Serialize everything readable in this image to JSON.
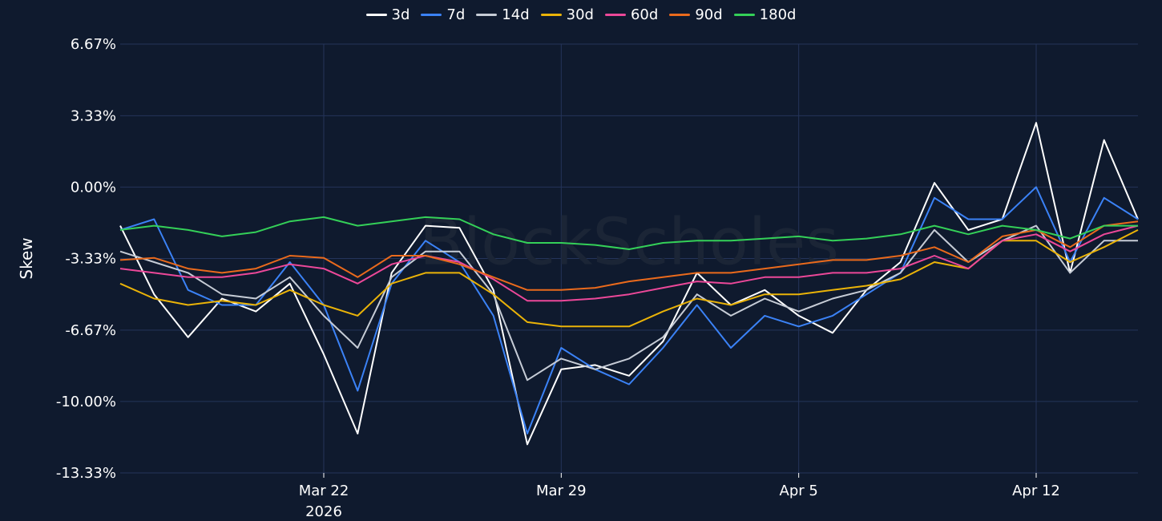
{
  "chart_data": {
    "type": "line",
    "title": "",
    "ylabel": "Skew",
    "xlabel": "",
    "watermark": "BlockScholes",
    "y_ticks": [
      "6.67%",
      "3.33%",
      "0.00%",
      "-3.33%",
      "-6.67%",
      "-10.00%",
      "-13.33%"
    ],
    "ylim": [
      -13.33,
      6.67
    ],
    "x_ticks": [
      {
        "date": "2026-03-22",
        "label": "Mar 22",
        "sublabel": "2026"
      },
      {
        "date": "2026-03-29",
        "label": "Mar 29",
        "sublabel": ""
      },
      {
        "date": "2026-04-05",
        "label": "Apr 5",
        "sublabel": ""
      },
      {
        "date": "2026-04-12",
        "label": "Apr 12",
        "sublabel": ""
      }
    ],
    "xlim": [
      "2026-03-16",
      "2026-04-15"
    ],
    "grid": true,
    "legend_position": "top-center",
    "background": "#0f1a2e",
    "grid_color": "#24345a",
    "series": [
      {
        "name": "3d",
        "color": "#ffffff",
        "x": [
          "2026-03-16",
          "2026-03-17",
          "2026-03-18",
          "2026-03-19",
          "2026-03-20",
          "2026-03-21",
          "2026-03-22",
          "2026-03-23",
          "2026-03-24",
          "2026-03-25",
          "2026-03-26",
          "2026-03-27",
          "2026-03-28",
          "2026-03-29",
          "2026-03-30",
          "2026-03-31",
          "2026-04-01",
          "2026-04-02",
          "2026-04-03",
          "2026-04-04",
          "2026-04-05",
          "2026-04-06",
          "2026-04-07",
          "2026-04-08",
          "2026-04-09",
          "2026-04-10",
          "2026-04-11",
          "2026-04-12",
          "2026-04-13",
          "2026-04-14",
          "2026-04-15"
        ],
        "y": [
          -1.8,
          -5.0,
          -7.0,
          -5.2,
          -5.8,
          -4.5,
          -7.8,
          -11.5,
          -4.0,
          -1.8,
          -1.9,
          -4.8,
          -12.0,
          -8.5,
          -8.3,
          -8.8,
          -7.2,
          -4.0,
          -5.5,
          -4.8,
          -6.0,
          -6.8,
          -4.8,
          -3.5,
          0.2,
          -2.0,
          -1.5,
          3.0,
          -4.0,
          2.2,
          -1.5
        ]
      },
      {
        "name": "7d",
        "color": "#3b82f6",
        "x": [
          "2026-03-16",
          "2026-03-17",
          "2026-03-18",
          "2026-03-19",
          "2026-03-20",
          "2026-03-21",
          "2026-03-22",
          "2026-03-23",
          "2026-03-24",
          "2026-03-25",
          "2026-03-26",
          "2026-03-27",
          "2026-03-28",
          "2026-03-29",
          "2026-03-30",
          "2026-03-31",
          "2026-04-01",
          "2026-04-02",
          "2026-04-03",
          "2026-04-04",
          "2026-04-05",
          "2026-04-06",
          "2026-04-07",
          "2026-04-08",
          "2026-04-09",
          "2026-04-10",
          "2026-04-11",
          "2026-04-12",
          "2026-04-13",
          "2026-04-14",
          "2026-04-15"
        ],
        "y": [
          -2.0,
          -1.5,
          -4.8,
          -5.5,
          -5.5,
          -3.5,
          -5.5,
          -9.5,
          -4.5,
          -2.5,
          -3.5,
          -6.0,
          -11.5,
          -7.5,
          -8.5,
          -9.2,
          -7.5,
          -5.5,
          -7.5,
          -6.0,
          -6.5,
          -6.0,
          -5.0,
          -4.0,
          -0.5,
          -1.5,
          -1.5,
          0.0,
          -3.5,
          -0.5,
          -1.5
        ]
      },
      {
        "name": "14d",
        "color": "#c6ccd6",
        "x": [
          "2026-03-16",
          "2026-03-17",
          "2026-03-18",
          "2026-03-19",
          "2026-03-20",
          "2026-03-21",
          "2026-03-22",
          "2026-03-23",
          "2026-03-24",
          "2026-03-25",
          "2026-03-26",
          "2026-03-27",
          "2026-03-28",
          "2026-03-29",
          "2026-03-30",
          "2026-03-31",
          "2026-04-01",
          "2026-04-02",
          "2026-04-03",
          "2026-04-04",
          "2026-04-05",
          "2026-04-06",
          "2026-04-07",
          "2026-04-08",
          "2026-04-09",
          "2026-04-10",
          "2026-04-11",
          "2026-04-12",
          "2026-04-13",
          "2026-04-14",
          "2026-04-15"
        ],
        "y": [
          -3.0,
          -3.5,
          -4.0,
          -5.0,
          -5.2,
          -4.2,
          -6.0,
          -7.5,
          -4.2,
          -3.0,
          -3.0,
          -5.0,
          -9.0,
          -8.0,
          -8.5,
          -8.0,
          -7.0,
          -5.0,
          -6.0,
          -5.2,
          -5.8,
          -5.2,
          -4.8,
          -4.0,
          -2.0,
          -3.5,
          -2.5,
          -1.8,
          -4.0,
          -2.5,
          -2.5
        ]
      },
      {
        "name": "30d",
        "color": "#eab308",
        "x": [
          "2026-03-16",
          "2026-03-17",
          "2026-03-18",
          "2026-03-19",
          "2026-03-20",
          "2026-03-21",
          "2026-03-22",
          "2026-03-23",
          "2026-03-24",
          "2026-03-25",
          "2026-03-26",
          "2026-03-27",
          "2026-03-28",
          "2026-03-29",
          "2026-03-30",
          "2026-03-31",
          "2026-04-01",
          "2026-04-02",
          "2026-04-03",
          "2026-04-04",
          "2026-04-05",
          "2026-04-06",
          "2026-04-07",
          "2026-04-08",
          "2026-04-09",
          "2026-04-10",
          "2026-04-11",
          "2026-04-12",
          "2026-04-13",
          "2026-04-14",
          "2026-04-15"
        ],
        "y": [
          -4.5,
          -5.2,
          -5.5,
          -5.3,
          -5.5,
          -4.8,
          -5.5,
          -6.0,
          -4.5,
          -4.0,
          -4.0,
          -5.0,
          -6.3,
          -6.5,
          -6.5,
          -6.5,
          -5.8,
          -5.2,
          -5.5,
          -5.0,
          -5.0,
          -4.8,
          -4.6,
          -4.3,
          -3.5,
          -3.8,
          -2.5,
          -2.5,
          -3.5,
          -2.8,
          -2.0
        ]
      },
      {
        "name": "60d",
        "color": "#ec4899",
        "x": [
          "2026-03-16",
          "2026-03-17",
          "2026-03-18",
          "2026-03-19",
          "2026-03-20",
          "2026-03-21",
          "2026-03-22",
          "2026-03-23",
          "2026-03-24",
          "2026-03-25",
          "2026-03-26",
          "2026-03-27",
          "2026-03-28",
          "2026-03-29",
          "2026-03-30",
          "2026-03-31",
          "2026-04-01",
          "2026-04-02",
          "2026-04-03",
          "2026-04-04",
          "2026-04-05",
          "2026-04-06",
          "2026-04-07",
          "2026-04-08",
          "2026-04-09",
          "2026-04-10",
          "2026-04-11",
          "2026-04-12",
          "2026-04-13",
          "2026-04-14",
          "2026-04-15"
        ],
        "y": [
          -3.8,
          -4.0,
          -4.2,
          -4.2,
          -4.0,
          -3.6,
          -3.8,
          -4.5,
          -3.6,
          -3.2,
          -3.5,
          -4.3,
          -5.3,
          -5.3,
          -5.2,
          -5.0,
          -4.7,
          -4.4,
          -4.5,
          -4.2,
          -4.2,
          -4.0,
          -4.0,
          -3.8,
          -3.2,
          -3.8,
          -2.5,
          -2.2,
          -3.0,
          -2.2,
          -1.8
        ]
      },
      {
        "name": "90d",
        "color": "#ea6a1c",
        "x": [
          "2026-03-16",
          "2026-03-17",
          "2026-03-18",
          "2026-03-19",
          "2026-03-20",
          "2026-03-21",
          "2026-03-22",
          "2026-03-23",
          "2026-03-24",
          "2026-03-25",
          "2026-03-26",
          "2026-03-27",
          "2026-03-28",
          "2026-03-29",
          "2026-03-30",
          "2026-03-31",
          "2026-04-01",
          "2026-04-02",
          "2026-04-03",
          "2026-04-04",
          "2026-04-05",
          "2026-04-06",
          "2026-04-07",
          "2026-04-08",
          "2026-04-09",
          "2026-04-10",
          "2026-04-11",
          "2026-04-12",
          "2026-04-13",
          "2026-04-14",
          "2026-04-15"
        ],
        "y": [
          -3.4,
          -3.3,
          -3.8,
          -4.0,
          -3.8,
          -3.2,
          -3.3,
          -4.2,
          -3.2,
          -3.2,
          -3.6,
          -4.2,
          -4.8,
          -4.8,
          -4.7,
          -4.4,
          -4.2,
          -4.0,
          -4.0,
          -3.8,
          -3.6,
          -3.4,
          -3.4,
          -3.2,
          -2.8,
          -3.5,
          -2.3,
          -2.0,
          -2.8,
          -1.8,
          -1.6
        ]
      },
      {
        "name": "180d",
        "color": "#34d058",
        "x": [
          "2026-03-16",
          "2026-03-17",
          "2026-03-18",
          "2026-03-19",
          "2026-03-20",
          "2026-03-21",
          "2026-03-22",
          "2026-03-23",
          "2026-03-24",
          "2026-03-25",
          "2026-03-26",
          "2026-03-27",
          "2026-03-28",
          "2026-03-29",
          "2026-03-30",
          "2026-03-31",
          "2026-04-01",
          "2026-04-02",
          "2026-04-03",
          "2026-04-04",
          "2026-04-05",
          "2026-04-06",
          "2026-04-07",
          "2026-04-08",
          "2026-04-09",
          "2026-04-10",
          "2026-04-11",
          "2026-04-12",
          "2026-04-13",
          "2026-04-14",
          "2026-04-15"
        ],
        "y": [
          -2.0,
          -1.8,
          -2.0,
          -2.3,
          -2.1,
          -1.6,
          -1.4,
          -1.8,
          -1.6,
          -1.4,
          -1.5,
          -2.2,
          -2.6,
          -2.6,
          -2.7,
          -2.9,
          -2.6,
          -2.5,
          -2.5,
          -2.4,
          -2.3,
          -2.5,
          -2.4,
          -2.2,
          -1.8,
          -2.2,
          -1.8,
          -2.0,
          -2.4,
          -1.8,
          -1.8
        ]
      }
    ]
  }
}
